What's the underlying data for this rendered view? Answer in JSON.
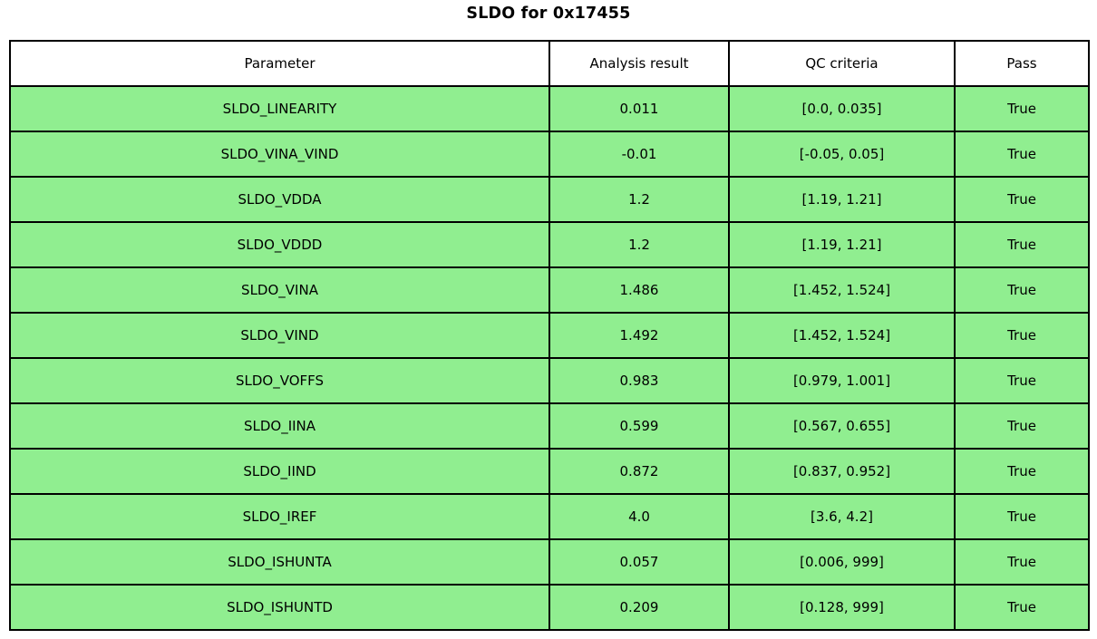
{
  "title": "SLDO for 0x17455",
  "colors": {
    "row_bg": "#90EE90",
    "header_bg": "#FFFFFF",
    "border_color": "#000000",
    "text_color": "#000000",
    "page_bg": "#FFFFFF"
  },
  "table": {
    "headers": [
      "Parameter",
      "Analysis result",
      "QC criteria",
      "Pass"
    ],
    "rows": [
      {
        "parameter": "SLDO_LINEARITY",
        "result": "0.011",
        "criteria": "[0.0, 0.035]",
        "pass": "True"
      },
      {
        "parameter": "SLDO_VINA_VIND",
        "result": "-0.01",
        "criteria": "[-0.05, 0.05]",
        "pass": "True"
      },
      {
        "parameter": "SLDO_VDDA",
        "result": "1.2",
        "criteria": "[1.19, 1.21]",
        "pass": "True"
      },
      {
        "parameter": "SLDO_VDDD",
        "result": "1.2",
        "criteria": "[1.19, 1.21]",
        "pass": "True"
      },
      {
        "parameter": "SLDO_VINA",
        "result": "1.486",
        "criteria": "[1.452, 1.524]",
        "pass": "True"
      },
      {
        "parameter": "SLDO_VIND",
        "result": "1.492",
        "criteria": "[1.452, 1.524]",
        "pass": "True"
      },
      {
        "parameter": "SLDO_VOFFS",
        "result": "0.983",
        "criteria": "[0.979, 1.001]",
        "pass": "True"
      },
      {
        "parameter": "SLDO_IINA",
        "result": "0.599",
        "criteria": "[0.567, 0.655]",
        "pass": "True"
      },
      {
        "parameter": "SLDO_IIND",
        "result": "0.872",
        "criteria": "[0.837, 0.952]",
        "pass": "True"
      },
      {
        "parameter": "SLDO_IREF",
        "result": "4.0",
        "criteria": "[3.6, 4.2]",
        "pass": "True"
      },
      {
        "parameter": "SLDO_ISHUNTA",
        "result": "0.057",
        "criteria": "[0.006, 999]",
        "pass": "True"
      },
      {
        "parameter": "SLDO_ISHUNTD",
        "result": "0.209",
        "criteria": "[0.128, 999]",
        "pass": "True"
      }
    ]
  },
  "chart_data": {
    "type": "table",
    "title": "SLDO for 0x17455",
    "columns": [
      "Parameter",
      "Analysis result",
      "QC criteria",
      "Pass"
    ],
    "rows": [
      [
        "SLDO_LINEARITY",
        0.011,
        "[0.0, 0.035]",
        true
      ],
      [
        "SLDO_VINA_VIND",
        -0.01,
        "[-0.05, 0.05]",
        true
      ],
      [
        "SLDO_VDDA",
        1.2,
        "[1.19, 1.21]",
        true
      ],
      [
        "SLDO_VDDD",
        1.2,
        "[1.19, 1.21]",
        true
      ],
      [
        "SLDO_VINA",
        1.486,
        "[1.452, 1.524]",
        true
      ],
      [
        "SLDO_VIND",
        1.492,
        "[1.452, 1.524]",
        true
      ],
      [
        "SLDO_VOFFS",
        0.983,
        "[0.979, 1.001]",
        true
      ],
      [
        "SLDO_IINA",
        0.599,
        "[0.567, 0.655]",
        true
      ],
      [
        "SLDO_IIND",
        0.872,
        "[0.837, 0.952]",
        true
      ],
      [
        "SLDO_IREF",
        4.0,
        "[3.6, 4.2]",
        true
      ],
      [
        "SLDO_ISHUNTA",
        0.057,
        "[0.006, 999]",
        true
      ],
      [
        "SLDO_ISHUNTD",
        0.209,
        "[0.128, 999]",
        true
      ]
    ],
    "layout": {
      "header_bg": "#FFFFFF",
      "row_bg": "#90EE90",
      "grid": true
    }
  }
}
